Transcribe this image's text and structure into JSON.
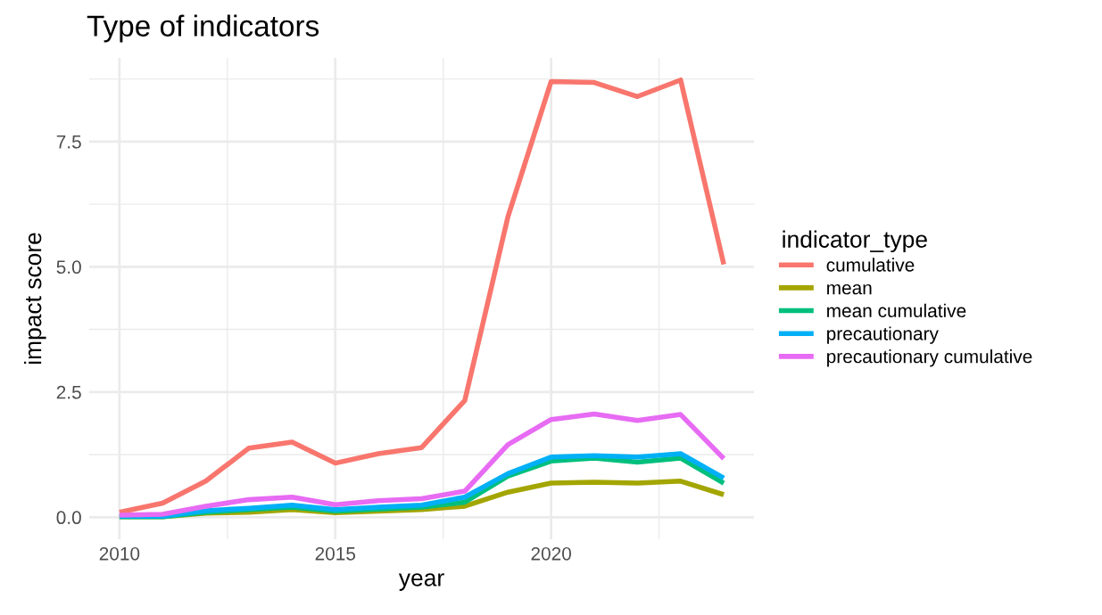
{
  "chart_data": {
    "type": "line",
    "title": "Type of indicators",
    "xlabel": "year",
    "ylabel": "impact score",
    "legend_title": "indicator_type",
    "x": [
      2010,
      2011,
      2012,
      2013,
      2014,
      2015,
      2016,
      2017,
      2018,
      2019,
      2020,
      2021,
      2022,
      2023,
      2024
    ],
    "series": [
      {
        "name": "cumulative",
        "color": "#f8766d",
        "values": [
          0.1,
          0.28,
          0.72,
          1.38,
          1.5,
          1.08,
          1.27,
          1.39,
          2.33,
          6.0,
          8.7,
          8.68,
          8.4,
          8.73,
          5.05
        ]
      },
      {
        "name": "mean",
        "color": "#a3a500",
        "values": [
          0.01,
          0.01,
          0.08,
          0.1,
          0.15,
          0.09,
          0.12,
          0.15,
          0.22,
          0.5,
          0.68,
          0.7,
          0.68,
          0.72,
          0.45
        ]
      },
      {
        "name": "mean cumulative",
        "color": "#00bf7d",
        "values": [
          0.01,
          0.01,
          0.1,
          0.15,
          0.2,
          0.12,
          0.16,
          0.2,
          0.3,
          0.82,
          1.12,
          1.18,
          1.1,
          1.18,
          0.68
        ]
      },
      {
        "name": "precautionary",
        "color": "#00b0f6",
        "values": [
          0.02,
          0.02,
          0.13,
          0.18,
          0.24,
          0.15,
          0.2,
          0.24,
          0.4,
          0.87,
          1.2,
          1.23,
          1.2,
          1.27,
          0.78
        ]
      },
      {
        "name": "precautionary cumulative",
        "color": "#e76bf3",
        "values": [
          0.04,
          0.06,
          0.22,
          0.35,
          0.4,
          0.25,
          0.33,
          0.37,
          0.52,
          1.45,
          1.95,
          2.06,
          1.93,
          2.05,
          1.17
        ]
      }
    ],
    "xlim": [
      2009.3,
      2024.7
    ],
    "ylim": [
      -0.44,
      9.17
    ],
    "xticks": [
      2010,
      2015,
      2020
    ],
    "yticks": [
      {
        "value": 0,
        "label": "0.0"
      },
      {
        "value": 2.5,
        "label": "2.5"
      },
      {
        "value": 5,
        "label": "5.0"
      },
      {
        "value": 7.5,
        "label": "7.5"
      }
    ],
    "grid": true,
    "legend": "right",
    "marker": "none",
    "line_style": "solid"
  }
}
